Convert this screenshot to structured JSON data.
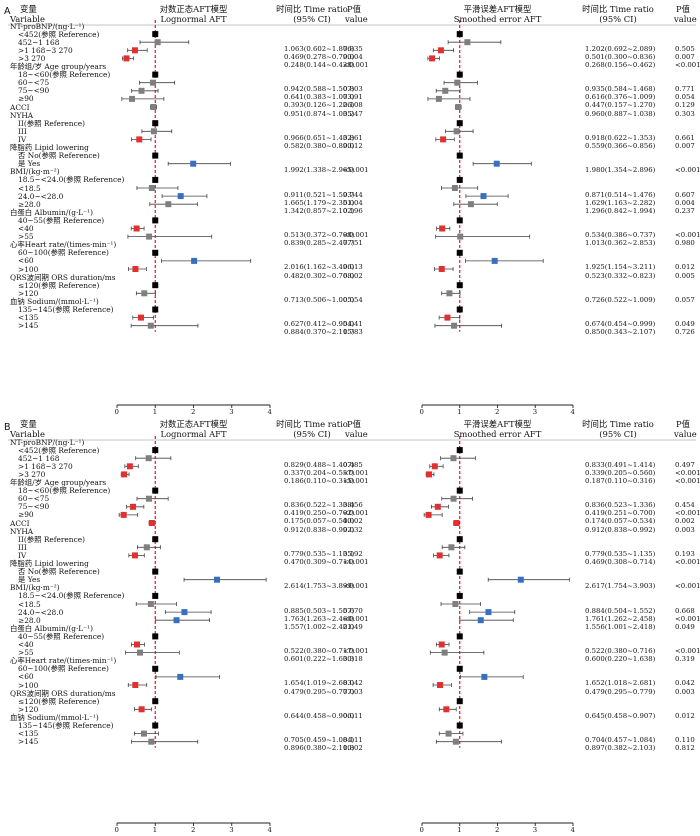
{
  "figure": {
    "ref_line_color": "#e8001c",
    "marker_colors": {
      "reference": "#000000",
      "neutral": "#7f7f7f",
      "decrease": "#e03030",
      "increase": "#3a6fc0"
    },
    "headers": {
      "variable_cn": "变量",
      "variable_en": "Variable",
      "model1_cn": "对数正态AFT模型",
      "model1_en": "Lognormal AFT",
      "tr_cn": "时间比 Time ratio",
      "tr_en": "(95% CI)",
      "p_cn": "P值",
      "p_en": "value",
      "model2_cn": "平滑误差AFT模型",
      "model2_en": "Smoothed error AFT"
    },
    "rows": [
      {
        "label": "NT-proBNP/(ng·L⁻¹)",
        "indent": 0
      },
      {
        "label": "<452(参照 Reference)",
        "indent": 1
      },
      {
        "label": "452~1 168",
        "indent": 1
      },
      {
        "label": ">1 168~3 270",
        "indent": 1
      },
      {
        "label": ">3 270",
        "indent": 1
      },
      {
        "label": "年龄组/岁 Age group/years",
        "indent": 0
      },
      {
        "label": "18~<60(参照 Reference)",
        "indent": 1
      },
      {
        "label": "60~<75",
        "indent": 1
      },
      {
        "label": "75~<90",
        "indent": 1
      },
      {
        "label": "≥90",
        "indent": 1
      },
      {
        "label": "ACCI",
        "indent": 0
      },
      {
        "label": "NYHA",
        "indent": 0
      },
      {
        "label": "II(参照 Reference)",
        "indent": 1
      },
      {
        "label": "III",
        "indent": 1
      },
      {
        "label": "IV",
        "indent": 1
      },
      {
        "label": "降脂药 Lipid lowering",
        "indent": 0
      },
      {
        "label": "否 No(参照 Reference)",
        "indent": 1
      },
      {
        "label": "是 Yes",
        "indent": 1
      },
      {
        "label": "BMI/(kg·m⁻²)",
        "indent": 0
      },
      {
        "label": "18.5~<24.0(参照 Reference)",
        "indent": 1
      },
      {
        "label": "<18.5",
        "indent": 1
      },
      {
        "label": "24.0~<28.0",
        "indent": 1
      },
      {
        "label": "≥28.0",
        "indent": 1
      },
      {
        "label": "白蛋白 Albumin/(g·L⁻¹)",
        "indent": 0
      },
      {
        "label": "40~55(参照 Reference)",
        "indent": 1
      },
      {
        "label": "<40",
        "indent": 1
      },
      {
        "label": ">55",
        "indent": 1
      },
      {
        "label": "心率Heart rate/(times·min⁻¹)",
        "indent": 0
      },
      {
        "label": "60~100(参照 Reference)",
        "indent": 1
      },
      {
        "label": "<60",
        "indent": 1
      },
      {
        "label": ">100",
        "indent": 1
      },
      {
        "label": "QRS波间期 ORS duration/ms",
        "indent": 0
      },
      {
        "label": "≤120(参照 Reference)",
        "indent": 1
      },
      {
        "label": ">120",
        "indent": 1
      },
      {
        "label": "血钠 Sodium/(mmol·L⁻¹)",
        "indent": 0
      },
      {
        "label": "135~145(参照 Reference)",
        "indent": 1
      },
      {
        "label": "<135",
        "indent": 1
      },
      {
        "label": ">145",
        "indent": 1
      }
    ]
  },
  "chart_data": [
    {
      "type": "forest",
      "panel": "A",
      "x_ticks": [
        0,
        1,
        2,
        3,
        4
      ],
      "xlim": [
        0,
        4
      ],
      "reference_value": 1,
      "lognormal": [
        null,
        {
          "ref": true
        },
        {
          "est": 1.063,
          "lo": 0.602,
          "hi": 1.876,
          "text": "1.063(0.602~1.876)",
          "p": "0.835"
        },
        {
          "est": 0.469,
          "lo": 0.278,
          "hi": 0.79,
          "text": "0.469(0.278~0.790)",
          "p": "0.004"
        },
        {
          "est": 0.248,
          "lo": 0.144,
          "hi": 0.428,
          "text": "0.248(0.144~0.428)",
          "p": "<0.001"
        },
        null,
        {
          "ref": true
        },
        {
          "est": 0.942,
          "lo": 0.588,
          "hi": 1.507,
          "text": "0.942(0.588~1.507)",
          "p": "0.803"
        },
        {
          "est": 0.641,
          "lo": 0.383,
          "hi": 1.073,
          "text": "0.641(0.383~1.073)",
          "p": "0.091"
        },
        {
          "est": 0.393,
          "lo": 0.126,
          "hi": 1.226,
          "text": "0.393(0.126~1.226)",
          "p": "0.108"
        },
        {
          "est": 0.951,
          "lo": 0.874,
          "hi": 1.035,
          "text": "0.951(0.874~1.035)",
          "p": "0.247"
        },
        null,
        {
          "ref": true
        },
        {
          "est": 0.966,
          "lo": 0.651,
          "hi": 1.432,
          "text": "0.966(0.651~1.432)",
          "p": "0.861"
        },
        {
          "est": 0.582,
          "lo": 0.38,
          "hi": 0.89,
          "text": "0.582(0.380~0.890)",
          "p": "0.012"
        },
        null,
        {
          "ref": true
        },
        {
          "est": 1.992,
          "lo": 1.338,
          "hi": 2.965,
          "text": "1.992(1.338~2.965)",
          "p": "<0.001"
        },
        null,
        {
          "ref": true
        },
        {
          "est": 0.911,
          "lo": 0.521,
          "hi": 1.593,
          "text": "0.911(0.521~1.593)",
          "p": "0.744"
        },
        {
          "est": 1.665,
          "lo": 1.179,
          "hi": 2.351,
          "text": "1.665(1.179~2.351)",
          "p": "0.004"
        },
        {
          "est": 1.342,
          "lo": 0.857,
          "hi": 2.102,
          "text": "1.342(0.857~2.102)",
          "p": "0.196"
        },
        null,
        {
          "ref": true
        },
        {
          "est": 0.513,
          "lo": 0.372,
          "hi": 0.708,
          "text": "0.513(0.372~0.708)",
          "p": "<0.001"
        },
        {
          "est": 0.839,
          "lo": 0.285,
          "hi": 2.477,
          "text": "0.839(0.285~2.477)",
          "p": "0.751"
        },
        null,
        {
          "ref": true
        },
        {
          "est": 2.016,
          "lo": 1.162,
          "hi": 3.496,
          "text": "2.016(1.162~3.496)",
          "p": "0.013"
        },
        {
          "est": 0.482,
          "lo": 0.302,
          "hi": 0.768,
          "text": "0.482(0.302~0.768)",
          "p": "0.002"
        },
        null,
        {
          "ref": true
        },
        {
          "est": 0.713,
          "lo": 0.506,
          "hi": 1.005,
          "text": "0.713(0.506~1.005)",
          "p": "0.054"
        },
        null,
        {
          "ref": true
        },
        {
          "est": 0.627,
          "lo": 0.412,
          "hi": 0.954,
          "text": "0.627(0.412~0.954)",
          "p": "0.041"
        },
        {
          "est": 0.884,
          "lo": 0.37,
          "hi": 2.115,
          "text": "0.884(0.370~2.115)",
          "p": "0.783"
        }
      ],
      "smoothed": [
        null,
        {
          "ref": true
        },
        {
          "est": 1.202,
          "lo": 0.692,
          "hi": 2.089,
          "text": "1.202(0.692~2.089)",
          "p": "0.505"
        },
        {
          "est": 0.501,
          "lo": 0.3,
          "hi": 0.836,
          "text": "0.501(0.300~0.836)",
          "p": "0.007"
        },
        {
          "est": 0.268,
          "lo": 0.156,
          "hi": 0.462,
          "text": "0.268(0.156~0.462)",
          "p": "<0.001"
        },
        null,
        {
          "ref": true
        },
        {
          "est": 0.935,
          "lo": 0.584,
          "hi": 1.468,
          "text": "0.935(0.584~1.468)",
          "p": "0.771"
        },
        {
          "est": 0.616,
          "lo": 0.376,
          "hi": 1.009,
          "text": "0.616(0.376~1.009)",
          "p": "0.054"
        },
        {
          "est": 0.447,
          "lo": 0.157,
          "hi": 1.27,
          "text": "0.447(0.157~1.270)",
          "p": "0.129"
        },
        {
          "est": 0.96,
          "lo": 0.887,
          "hi": 1.038,
          "text": "0.960(0.887~1.038)",
          "p": "0.303"
        },
        null,
        {
          "ref": true
        },
        {
          "est": 0.918,
          "lo": 0.622,
          "hi": 1.353,
          "text": "0.918(0.622~1.353)",
          "p": "0.661"
        },
        {
          "est": 0.559,
          "lo": 0.366,
          "hi": 0.856,
          "text": "0.559(0.366~0.856)",
          "p": "0.007"
        },
        null,
        {
          "ref": true
        },
        {
          "est": 1.98,
          "lo": 1.354,
          "hi": 2.896,
          "text": "1.980(1.354~2.896)",
          "p": "<0.001"
        },
        null,
        {
          "ref": true
        },
        {
          "est": 0.871,
          "lo": 0.514,
          "hi": 1.476,
          "text": "0.871(0.514~1.476)",
          "p": "0.607"
        },
        {
          "est": 1.629,
          "lo": 1.163,
          "hi": 2.282,
          "text": "1.629(1.163~2.282)",
          "p": "0.004"
        },
        {
          "est": 1.296,
          "lo": 0.842,
          "hi": 1.994,
          "text": "1.296(0.842~1.994)",
          "p": "0.237"
        },
        null,
        {
          "ref": true
        },
        {
          "est": 0.534,
          "lo": 0.386,
          "hi": 0.737,
          "text": "0.534(0.386~0.737)",
          "p": "<0.001"
        },
        {
          "est": 1.013,
          "lo": 0.362,
          "hi": 2.853,
          "text": "1.013(0.362~2.853)",
          "p": "0.980"
        },
        null,
        {
          "ref": true
        },
        {
          "est": 1.925,
          "lo": 1.154,
          "hi": 3.211,
          "text": "1.925(1.154~3.211)",
          "p": "0.012"
        },
        {
          "est": 0.523,
          "lo": 0.332,
          "hi": 0.823,
          "text": "0.523(0.332~0.823)",
          "p": "0.005"
        },
        null,
        {
          "ref": true
        },
        {
          "est": 0.726,
          "lo": 0.522,
          "hi": 1.009,
          "text": "0.726(0.522~1.009)",
          "p": "0.057"
        },
        null,
        {
          "ref": true
        },
        {
          "est": 0.674,
          "lo": 0.454,
          "hi": 0.999,
          "text": "0.674(0.454~0.999)",
          "p": "0.049"
        },
        {
          "est": 0.85,
          "lo": 0.343,
          "hi": 2.107,
          "text": "0.850(0.343~2.107)",
          "p": "0.726"
        }
      ]
    },
    {
      "type": "forest",
      "panel": "B",
      "x_ticks": [
        0,
        1,
        2,
        3,
        4
      ],
      "xlim": [
        0,
        4
      ],
      "reference_value": 1,
      "lognormal": [
        null,
        {
          "ref": true
        },
        {
          "est": 0.829,
          "lo": 0.488,
          "hi": 1.407,
          "text": "0.829(0.488~1.407)",
          "p": "0.485"
        },
        {
          "est": 0.337,
          "lo": 0.204,
          "hi": 0.557,
          "text": "0.337(0.204~0.557)",
          "p": "<0.001"
        },
        {
          "est": 0.186,
          "lo": 0.11,
          "hi": 0.315,
          "text": "0.186(0.110~0.315)",
          "p": "<0.001"
        },
        null,
        {
          "ref": true
        },
        {
          "est": 0.836,
          "lo": 0.522,
          "hi": 1.338,
          "text": "0.836(0.522~1.338)",
          "p": "0.456"
        },
        {
          "est": 0.419,
          "lo": 0.25,
          "hi": 0.702,
          "text": "0.419(0.250~0.702)",
          "p": "<0.001"
        },
        {
          "est": 0.175,
          "lo": 0.057,
          "hi": 0.54,
          "text": "0.175(0.057~0.540)",
          "p": "0.002"
        },
        {
          "est": 0.912,
          "lo": 0.838,
          "hi": 0.992,
          "text": "0.912(0.838~0.992)",
          "p": "0.032"
        },
        null,
        {
          "ref": true
        },
        {
          "est": 0.779,
          "lo": 0.535,
          "hi": 1.135,
          "text": "0.779(0.535~1.135)",
          "p": "0.192"
        },
        {
          "est": 0.47,
          "lo": 0.309,
          "hi": 0.714,
          "text": "0.470(0.309~0.714)",
          "p": "<0.001"
        },
        null,
        {
          "ref": true
        },
        {
          "est": 2.614,
          "lo": 1.753,
          "hi": 3.899,
          "text": "2.614(1.753~3.899)",
          "p": "<0.001"
        },
        null,
        {
          "ref": true
        },
        {
          "est": 0.885,
          "lo": 0.503,
          "hi": 1.557,
          "text": "0.885(0.503~1.557)",
          "p": "0.670"
        },
        {
          "est": 1.763,
          "lo": 1.263,
          "hi": 2.46,
          "text": "1.763(1.263~2.460)",
          "p": "<0.001"
        },
        {
          "est": 1.557,
          "lo": 1.002,
          "hi": 2.421,
          "text": "1.557(1.002~2.421)",
          "p": "0.049"
        },
        null,
        {
          "ref": true
        },
        {
          "est": 0.522,
          "lo": 0.38,
          "hi": 0.717,
          "text": "0.522(0.380~0.717)",
          "p": "<0.001"
        },
        {
          "est": 0.601,
          "lo": 0.222,
          "hi": 1.63,
          "text": "0.601(0.222~1.630)",
          "p": "0.318"
        },
        null,
        {
          "ref": true
        },
        {
          "est": 1.654,
          "lo": 1.019,
          "hi": 2.683,
          "text": "1.654(1.019~2.683)",
          "p": "0.042"
        },
        {
          "est": 0.479,
          "lo": 0.295,
          "hi": 0.777,
          "text": "0.479(0.295~0.777)",
          "p": "0.003"
        },
        null,
        {
          "ref": true
        },
        {
          "est": 0.644,
          "lo": 0.458,
          "hi": 0.906,
          "text": "0.644(0.458~0.906)",
          "p": "0.011"
        },
        null,
        {
          "ref": true
        },
        {
          "est": 0.705,
          "lo": 0.459,
          "hi": 1.084,
          "text": "0.705(0.459~1.084)",
          "p": "0.111"
        },
        {
          "est": 0.896,
          "lo": 0.38,
          "hi": 2.11,
          "text": "0.896(0.380~2.110)",
          "p": "0.802"
        }
      ],
      "smoothed": [
        null,
        {
          "ref": true
        },
        {
          "est": 0.833,
          "lo": 0.491,
          "hi": 1.414,
          "text": "0.833(0.491~1.414)",
          "p": "0.497"
        },
        {
          "est": 0.339,
          "lo": 0.205,
          "hi": 0.56,
          "text": "0.339(0.205~0.560)",
          "p": "<0.001"
        },
        {
          "est": 0.187,
          "lo": 0.11,
          "hi": 0.316,
          "text": "0.187(0.110~0.316)",
          "p": "<0.001"
        },
        null,
        {
          "ref": true
        },
        {
          "est": 0.836,
          "lo": 0.523,
          "hi": 1.336,
          "text": "0.836(0.523~1.336)",
          "p": "0.454"
        },
        {
          "est": 0.419,
          "lo": 0.251,
          "hi": 0.7,
          "text": "0.419(0.251~0.700)",
          "p": "<0.001"
        },
        {
          "est": 0.174,
          "lo": 0.057,
          "hi": 0.534,
          "text": "0.174(0.057~0.534)",
          "p": "0.002"
        },
        {
          "est": 0.912,
          "lo": 0.838,
          "hi": 0.992,
          "text": "0.912(0.838~0.992)",
          "p": "0.003"
        },
        null,
        {
          "ref": true
        },
        {
          "est": 0.779,
          "lo": 0.535,
          "hi": 1.135,
          "text": "0.779(0.535~1.135)",
          "p": "0.193"
        },
        {
          "est": 0.469,
          "lo": 0.308,
          "hi": 0.714,
          "text": "0.469(0.308~0.714)",
          "p": "<0.001"
        },
        null,
        {
          "ref": true
        },
        {
          "est": 2.617,
          "lo": 1.754,
          "hi": 3.903,
          "text": "2.617(1.754~3.903)",
          "p": "<0.001"
        },
        null,
        {
          "ref": true
        },
        {
          "est": 0.884,
          "lo": 0.504,
          "hi": 1.552,
          "text": "0.884(0.504~1.552)",
          "p": "0.668"
        },
        {
          "est": 1.761,
          "lo": 1.262,
          "hi": 2.458,
          "text": "1.761(1.262~2.458)",
          "p": "<0.001"
        },
        {
          "est": 1.556,
          "lo": 1.001,
          "hi": 2.418,
          "text": "1.556(1.001~2.418)",
          "p": "0.049"
        },
        null,
        {
          "ref": true
        },
        {
          "est": 0.522,
          "lo": 0.38,
          "hi": 0.716,
          "text": "0.522(0.380~0.716)",
          "p": "<0.001"
        },
        {
          "est": 0.6,
          "lo": 0.22,
          "hi": 1.638,
          "text": "0.600(0.220~1.638)",
          "p": "0.319"
        },
        null,
        {
          "ref": true
        },
        {
          "est": 1.652,
          "lo": 1.018,
          "hi": 2.681,
          "text": "1.652(1.018~2.681)",
          "p": "0.042"
        },
        {
          "est": 0.479,
          "lo": 0.295,
          "hi": 0.779,
          "text": "0.479(0.295~0.779)",
          "p": "0.003"
        },
        null,
        {
          "ref": true
        },
        {
          "est": 0.645,
          "lo": 0.458,
          "hi": 0.907,
          "text": "0.645(0.458~0.907)",
          "p": "0.012"
        },
        null,
        {
          "ref": true
        },
        {
          "est": 0.704,
          "lo": 0.457,
          "hi": 1.084,
          "text": "0.704(0.457~1.084)",
          "p": "0.110"
        },
        {
          "est": 0.897,
          "lo": 0.382,
          "hi": 2.103,
          "text": "0.897(0.382~2.103)",
          "p": "0.812"
        }
      ]
    }
  ]
}
